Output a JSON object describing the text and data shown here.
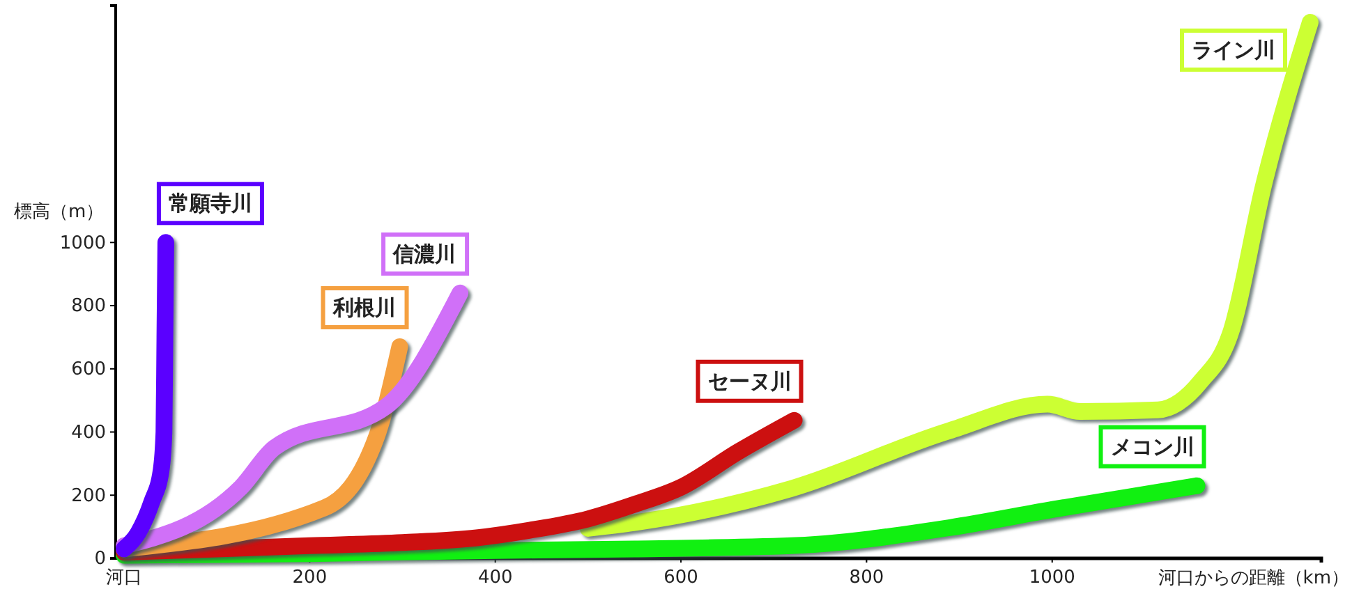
{
  "chart_data": {
    "type": "line",
    "ylabel": "標高（m）",
    "xlabel": "河口からの距離（km）",
    "xlim": [
      0,
      1290
    ],
    "xticks": [
      {
        "value": 0,
        "label": "河口"
      },
      200,
      400,
      600,
      800,
      1000
    ],
    "ylim": [
      0,
      1750
    ],
    "yticks": [
      0,
      200,
      400,
      600,
      800,
      1000
    ],
    "grid": false,
    "line_style": "solid",
    "series": [
      {
        "name": "ライン川",
        "color": "#ccff33",
        "x": [
          500,
          550,
          719,
          889,
          995,
          1030,
          1114,
          1160,
          1192,
          1228,
          1278
        ],
        "values": [
          95,
          113,
          221,
          404,
          488,
          465,
          470,
          560,
          712,
          1184,
          1697
        ]
      },
      {
        "name": "メコン川",
        "color": "#11f011",
        "x": [
          0,
          200,
          400,
          550,
          719,
          889,
          1001,
          1156
        ],
        "values": [
          10,
          15,
          25,
          30,
          40,
          97,
          155,
          230
        ]
      },
      {
        "name": "セーヌ川",
        "color": "#cc1010",
        "x": [
          0,
          100,
          200,
          300,
          380,
          437,
          500,
          550,
          600,
          662,
          722
        ],
        "values": [
          20,
          30,
          40,
          50,
          65,
          89,
          125,
          171,
          225,
          338,
          437
        ]
      },
      {
        "name": "利根川",
        "color": "#f5a040",
        "x": [
          0,
          216,
          272,
          297
        ],
        "values": [
          30,
          160,
          385,
          670
        ]
      },
      {
        "name": "信濃川",
        "color": "#d070f8",
        "x": [
          0,
          126,
          162,
          282,
          362
        ],
        "values": [
          40,
          225,
          350,
          480,
          840
        ]
      },
      {
        "name": "常願寺川",
        "color": "#5a00ff",
        "x": [
          0,
          15,
          30,
          40,
          43,
          44,
          45
        ],
        "values": [
          30,
          80,
          180,
          280,
          400,
          700,
          1000
        ]
      }
    ]
  }
}
